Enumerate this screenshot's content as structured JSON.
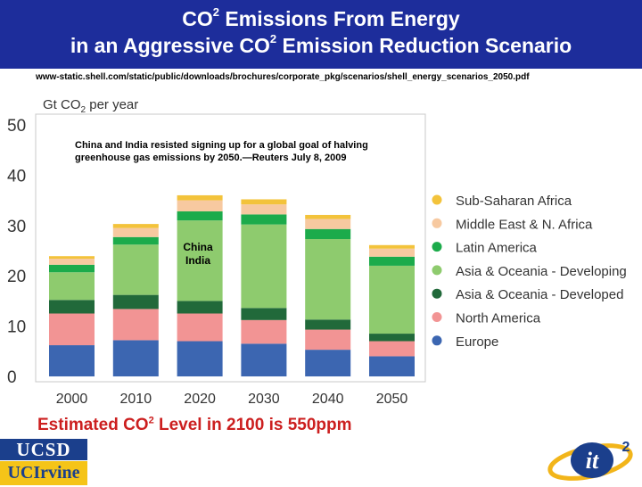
{
  "header": {
    "line1_prefix": "CO",
    "line1_sup": "2",
    "line1_suffix": " Emissions From Energy",
    "line2_prefix": "in an Aggressive CO",
    "line2_sup": "2",
    "line2_suffix": " Emission Reduction Scenario"
  },
  "source_url": "www-static.shell.com/static/public/downloads/brochures/corporate_pkg/scenarios/shell_energy_scenarios_2050.pdf",
  "note_text": "China and India resisted signing up for a global goal of halving greenhouse gas emissions by 2050.—Reuters July 8, 2009",
  "annotation": {
    "line1": "China",
    "line2": "India"
  },
  "bottom_text": {
    "prefix": "Estimated CO",
    "sup": "2",
    "suffix": " Level in  2100 is 550ppm"
  },
  "logos": {
    "ucsd": "UCSD",
    "uci": "UCIrvine",
    "it2": "it",
    "it2_sup": "2"
  },
  "colors": {
    "header_bg": "#1d2d9b",
    "bottom_text": "#cc1f1f"
  },
  "chart_data": {
    "type": "bar",
    "stacked": true,
    "ylabel_prefix": "Gt CO",
    "ylabel_sub": "2",
    "ylabel_suffix": " per year",
    "ylim": [
      0,
      50
    ],
    "yticks": [
      0,
      10,
      20,
      30,
      40,
      50
    ],
    "grid": false,
    "legend_position": "right",
    "categories": [
      "2000",
      "2010",
      "2020",
      "2030",
      "2040",
      "2050"
    ],
    "series": [
      {
        "name": "Europe",
        "color": "#3c66b1",
        "values": [
          6.2,
          7.2,
          7.0,
          6.5,
          5.3,
          4.0
        ]
      },
      {
        "name": "North America",
        "color": "#f29494",
        "values": [
          6.3,
          6.2,
          5.5,
          4.7,
          4.0,
          3.0
        ]
      },
      {
        "name": "Asia & Oceania - Developed",
        "color": "#21693a",
        "values": [
          2.7,
          2.8,
          2.5,
          2.4,
          2.0,
          1.5
        ]
      },
      {
        "name": "Asia & Oceania - Developing",
        "color": "#8ecb6e",
        "values": [
          5.5,
          10.0,
          16.0,
          16.6,
          16.0,
          13.5
        ]
      },
      {
        "name": "Latin America",
        "color": "#1cab4b",
        "values": [
          1.5,
          1.5,
          1.8,
          2.0,
          2.0,
          1.8
        ]
      },
      {
        "name": "Middle East & N. Africa",
        "color": "#f7c9a0",
        "values": [
          1.2,
          1.8,
          2.2,
          2.0,
          2.0,
          1.6
        ]
      },
      {
        "name": "Sub-Saharan Africa",
        "color": "#f3c33b",
        "values": [
          0.5,
          0.8,
          1.0,
          1.0,
          0.8,
          0.7
        ]
      }
    ],
    "legend_order": [
      "Sub-Saharan Africa",
      "Middle East & N. Africa",
      "Latin America",
      "Asia & Oceania - Developing",
      "Asia & Oceania - Developed",
      "North America",
      "Europe"
    ]
  }
}
